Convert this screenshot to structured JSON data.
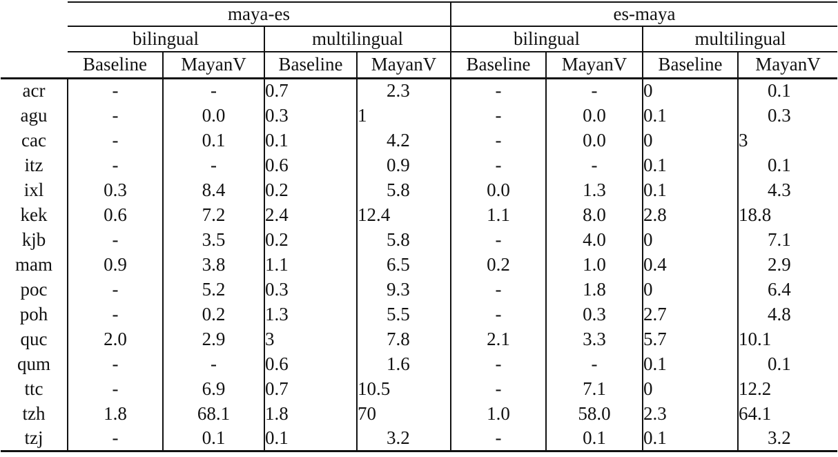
{
  "table": {
    "col_groups": [
      "maya-es",
      "es-maya"
    ],
    "sub_groups": [
      "bilingual",
      "multilingual",
      "bilingual",
      "multilingual"
    ],
    "col_headers": [
      "Baseline",
      "MayanV",
      "Baseline",
      "MayanV",
      "Baseline",
      "MayanV",
      "Baseline",
      "MayanV"
    ],
    "rows": [
      {
        "lang": "acr",
        "values": [
          "-",
          "-",
          "0.7",
          "2.3",
          "-",
          "-",
          "0",
          "0.1"
        ]
      },
      {
        "lang": "agu",
        "values": [
          "-",
          "0.0",
          "0.3",
          "1",
          "-",
          "0.0",
          "0.1",
          "0.3"
        ]
      },
      {
        "lang": "cac",
        "values": [
          "-",
          "0.1",
          "0.1",
          "4.2",
          "-",
          "0.0",
          "0",
          "3"
        ]
      },
      {
        "lang": "itz",
        "values": [
          "-",
          "-",
          "0.6",
          "0.9",
          "-",
          "-",
          "0.1",
          "0.1"
        ]
      },
      {
        "lang": "ixl",
        "values": [
          "0.3",
          "8.4",
          "0.2",
          "5.8",
          "0.0",
          "1.3",
          "0.1",
          "4.3"
        ]
      },
      {
        "lang": "kek",
        "values": [
          "0.6",
          "7.2",
          "2.4",
          "12.4",
          "1.1",
          "8.0",
          "2.8",
          "18.8"
        ]
      },
      {
        "lang": "kjb",
        "values": [
          "-",
          "3.5",
          "0.2",
          "5.8",
          "-",
          "4.0",
          "0",
          "7.1"
        ]
      },
      {
        "lang": "mam",
        "values": [
          "0.9",
          "3.8",
          "1.1",
          "6.5",
          "0.2",
          "1.0",
          "0.4",
          "2.9"
        ]
      },
      {
        "lang": "poc",
        "values": [
          "-",
          "5.2",
          "0.3",
          "9.3",
          "-",
          "1.8",
          "0",
          "6.4"
        ]
      },
      {
        "lang": "poh",
        "values": [
          "-",
          "0.2",
          "1.3",
          "5.5",
          "-",
          "0.3",
          "2.7",
          "4.8"
        ]
      },
      {
        "lang": "quc",
        "values": [
          "2.0",
          "2.9",
          "3",
          "7.8",
          "2.1",
          "3.3",
          "5.7",
          "10.1"
        ]
      },
      {
        "lang": "qum",
        "values": [
          "-",
          "-",
          "0.6",
          "1.6",
          "-",
          "-",
          "0.1",
          "0.1"
        ]
      },
      {
        "lang": "ttc",
        "values": [
          "-",
          "6.9",
          "0.7",
          "10.5",
          "-",
          "7.1",
          "0",
          "12.2"
        ]
      },
      {
        "lang": "tzh",
        "values": [
          "1.8",
          "68.1",
          "1.8",
          "70",
          "1.0",
          "58.0",
          "2.3",
          "64.1"
        ]
      },
      {
        "lang": "tzj",
        "values": [
          "-",
          "0.1",
          "0.1",
          "3.2",
          "-",
          "0.1",
          "0.1",
          "3.2"
        ]
      }
    ]
  }
}
